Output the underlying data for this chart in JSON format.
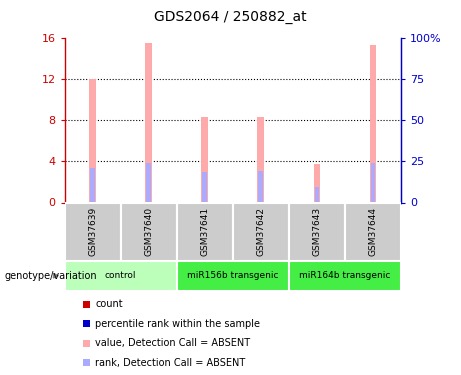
{
  "title": "GDS2064 / 250882_at",
  "samples": [
    "GSM37639",
    "GSM37640",
    "GSM37641",
    "GSM37642",
    "GSM37643",
    "GSM37644"
  ],
  "pink_bar_heights": [
    12.0,
    15.5,
    8.3,
    8.3,
    3.7,
    15.3
  ],
  "blue_bar_heights": [
    3.3,
    3.8,
    3.0,
    3.1,
    1.5,
    3.8
  ],
  "ylim_left": [
    0,
    16
  ],
  "ylim_right": [
    0,
    100
  ],
  "yticks_left": [
    0,
    4,
    8,
    12,
    16
  ],
  "yticks_right": [
    0,
    25,
    50,
    75,
    100
  ],
  "ytick_labels_right": [
    "0",
    "25",
    "50",
    "75",
    "100%"
  ],
  "groups": [
    {
      "label": "control",
      "span": [
        0,
        2
      ],
      "color": "#bbffbb"
    },
    {
      "label": "miR156b transgenic",
      "span": [
        2,
        4
      ],
      "color": "#44ee44"
    },
    {
      "label": "miR164b transgenic",
      "span": [
        4,
        6
      ],
      "color": "#44ee44"
    }
  ],
  "sample_box_color": "#cccccc",
  "pink_color": "#ffaaaa",
  "blue_color": "#aaaaff",
  "legend_items": [
    {
      "color": "#cc0000",
      "label": "count"
    },
    {
      "color": "#0000cc",
      "label": "percentile rank within the sample"
    },
    {
      "color": "#ffaaaa",
      "label": "value, Detection Call = ABSENT"
    },
    {
      "color": "#aaaaff",
      "label": "rank, Detection Call = ABSENT"
    }
  ],
  "left_axis_color": "#cc0000",
  "right_axis_color": "#0000cc",
  "bar_width": 0.12,
  "blue_bar_width": 0.14,
  "genotype_label": "genotype/variation"
}
